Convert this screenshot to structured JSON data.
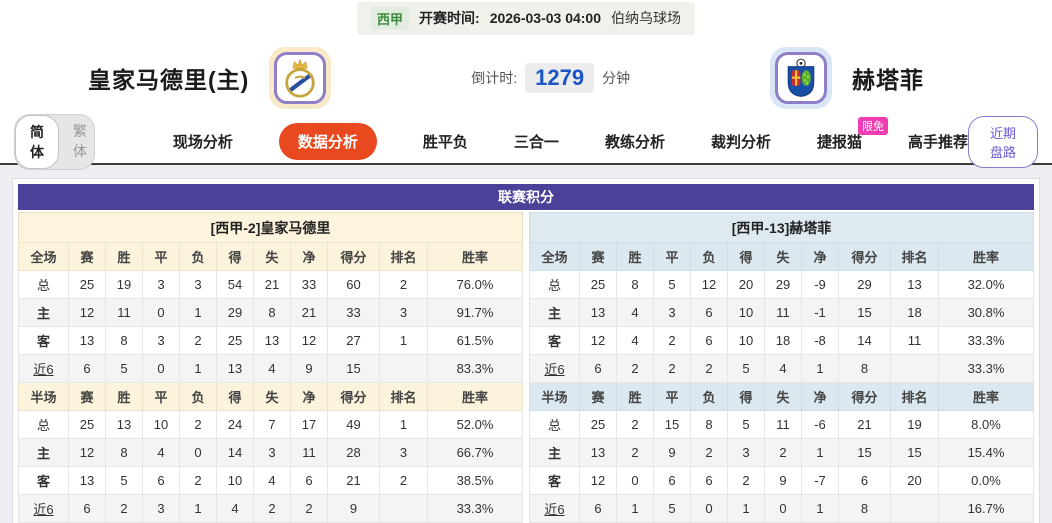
{
  "match": {
    "league": "西甲",
    "kickoff_label": "开赛时间:",
    "kickoff_time": "2026-03-03 04:00",
    "venue": "伯纳乌球场",
    "home_team": "皇家马德里(主)",
    "away_team": "赫塔菲",
    "countdown_label": "倒计时:",
    "countdown_value": "1279",
    "countdown_unit": "分钟"
  },
  "nav": {
    "lang_simplified": "简体",
    "lang_traditional": "繁体",
    "tabs": [
      {
        "label": "现场分析",
        "active": false
      },
      {
        "label": "数据分析",
        "active": true
      },
      {
        "label": "胜平负",
        "active": false
      },
      {
        "label": "三合一",
        "active": false
      },
      {
        "label": "教练分析",
        "active": false
      },
      {
        "label": "裁判分析",
        "active": false
      },
      {
        "label": "捷报猫",
        "active": false,
        "badge": "限免"
      },
      {
        "label": "高手推荐",
        "active": false
      }
    ],
    "recent_button": "近期盘路"
  },
  "colors": {
    "purple_header": "#4c4199",
    "active_tab_orange": "#e8491f",
    "badge_pink": "#f23cb2",
    "home_label_red": "#d40000",
    "away_label_blue": "#1414cc",
    "countdown_blue": "#1b55c6",
    "league_green": "#3d8b3d",
    "home_header_bg": "#fcf4dd",
    "away_header_bg": "#dfe9f0"
  },
  "league_table": {
    "title": "联赛积分",
    "columns": [
      "赛",
      "胜",
      "平",
      "负",
      "得",
      "失",
      "净",
      "得分",
      "排名",
      "胜率"
    ],
    "full_label": "全场",
    "half_label": "半场",
    "row_labels": [
      "总",
      "主",
      "客",
      "近6"
    ],
    "teams": [
      {
        "header": "[西甲-2]皇家马德里",
        "full": [
          [
            "25",
            "19",
            "3",
            "3",
            "54",
            "21",
            "33",
            "60",
            "2",
            "76.0%"
          ],
          [
            "12",
            "11",
            "0",
            "1",
            "29",
            "8",
            "21",
            "33",
            "3",
            "91.7%"
          ],
          [
            "13",
            "8",
            "3",
            "2",
            "25",
            "13",
            "12",
            "27",
            "1",
            "61.5%"
          ],
          [
            "6",
            "5",
            "0",
            "1",
            "13",
            "4",
            "9",
            "15",
            "",
            "83.3%"
          ]
        ],
        "half": [
          [
            "25",
            "13",
            "10",
            "2",
            "24",
            "7",
            "17",
            "49",
            "1",
            "52.0%"
          ],
          [
            "12",
            "8",
            "4",
            "0",
            "14",
            "3",
            "11",
            "28",
            "3",
            "66.7%"
          ],
          [
            "13",
            "5",
            "6",
            "2",
            "10",
            "4",
            "6",
            "21",
            "2",
            "38.5%"
          ],
          [
            "6",
            "2",
            "3",
            "1",
            "4",
            "2",
            "2",
            "9",
            "",
            "33.3%"
          ]
        ]
      },
      {
        "header": "[西甲-13]赫塔菲",
        "full": [
          [
            "25",
            "8",
            "5",
            "12",
            "20",
            "29",
            "-9",
            "29",
            "13",
            "32.0%"
          ],
          [
            "13",
            "4",
            "3",
            "6",
            "10",
            "11",
            "-1",
            "15",
            "18",
            "30.8%"
          ],
          [
            "12",
            "4",
            "2",
            "6",
            "10",
            "18",
            "-8",
            "14",
            "11",
            "33.3%"
          ],
          [
            "6",
            "2",
            "2",
            "2",
            "5",
            "4",
            "1",
            "8",
            "",
            "33.3%"
          ]
        ],
        "half": [
          [
            "25",
            "2",
            "15",
            "8",
            "5",
            "11",
            "-6",
            "21",
            "19",
            "8.0%"
          ],
          [
            "13",
            "2",
            "9",
            "2",
            "3",
            "2",
            "1",
            "15",
            "15",
            "15.4%"
          ],
          [
            "12",
            "0",
            "6",
            "6",
            "2",
            "9",
            "-7",
            "6",
            "20",
            "0.0%"
          ],
          [
            "6",
            "1",
            "5",
            "0",
            "1",
            "0",
            "1",
            "8",
            "",
            "16.7%"
          ]
        ]
      }
    ]
  }
}
